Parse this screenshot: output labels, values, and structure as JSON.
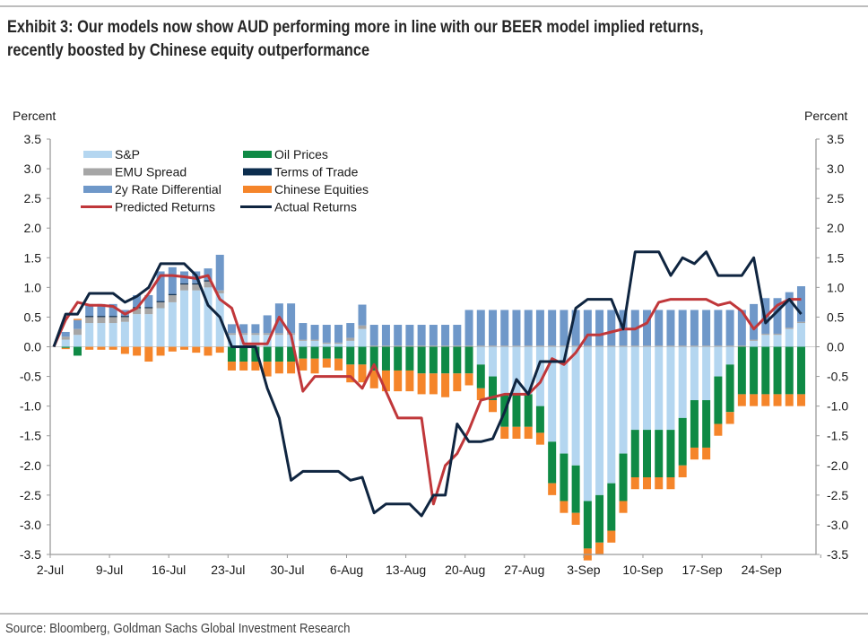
{
  "title": "Exhibit 3: Our models now show AUD performing more in line with our BEER model implied returns, recently boosted by Chinese equity outperformance",
  "title_line1": "Exhibit 3: Our models now show AUD performing more in line with our BEER model implied returns,",
  "title_line2": "recently boosted by Chinese equity outperformance",
  "source": "Source: Bloomberg, Goldman Sachs Global Investment Research",
  "chart_data": {
    "type": "bar",
    "stacked": true,
    "title": "",
    "ylabel_left": "Percent",
    "ylabel_right": "Percent",
    "xlabel": "",
    "ylim": [
      -3.5,
      3.5
    ],
    "yticks": [
      3.5,
      3.0,
      2.5,
      2.0,
      1.5,
      1.0,
      0.5,
      0.0,
      -0.5,
      -1.0,
      -1.5,
      -2.0,
      -2.5,
      -3.0,
      -3.5
    ],
    "ytick_labels": [
      "3.5",
      "3.0",
      "2.5",
      "2.0",
      "1.5",
      "1.0",
      "0.5",
      "0.0",
      "-0.5",
      "-1.0",
      "-1.5",
      "-2.0",
      "-2.5",
      "-3.0",
      "-3.5"
    ],
    "xtick_labels": [
      "2-Jul",
      "9-Jul",
      "16-Jul",
      "23-Jul",
      "30-Jul",
      "6-Aug",
      "13-Aug",
      "20-Aug",
      "27-Aug",
      "3-Sep",
      "10-Sep",
      "17-Sep",
      "24-Sep"
    ],
    "legend_position": "top-left",
    "legend": [
      {
        "name": "S&P",
        "kind": "bar",
        "color": "#b4d6f0"
      },
      {
        "name": "Oil Prices",
        "kind": "bar",
        "color": "#0f8a45"
      },
      {
        "name": "EMU Spread",
        "kind": "bar",
        "color": "#a6a6a6"
      },
      {
        "name": "Terms of Trade",
        "kind": "bar",
        "color": "#0c2d4e"
      },
      {
        "name": "2y Rate Differential",
        "kind": "bar",
        "color": "#6f98c9"
      },
      {
        "name": "Chinese Equities",
        "kind": "bar",
        "color": "#f5852a"
      },
      {
        "name": "Predicted Returns",
        "kind": "line",
        "color": "#c0373a"
      },
      {
        "name": "Actual Returns",
        "kind": "line",
        "color": "#0f2540"
      }
    ],
    "x": [
      "2-Jul",
      "3-Jul",
      "4-Jul",
      "5-Jul",
      "6-Jul",
      "9-Jul",
      "10-Jul",
      "11-Jul",
      "12-Jul",
      "13-Jul",
      "16-Jul",
      "17-Jul",
      "18-Jul",
      "19-Jul",
      "20-Jul",
      "23-Jul",
      "24-Jul",
      "25-Jul",
      "26-Jul",
      "27-Jul",
      "30-Jul",
      "31-Jul",
      "1-Aug",
      "2-Aug",
      "3-Aug",
      "6-Aug",
      "7-Aug",
      "8-Aug",
      "9-Aug",
      "10-Aug",
      "13-Aug",
      "14-Aug",
      "15-Aug",
      "16-Aug",
      "17-Aug",
      "20-Aug",
      "21-Aug",
      "22-Aug",
      "23-Aug",
      "24-Aug",
      "27-Aug",
      "28-Aug",
      "29-Aug",
      "30-Aug",
      "31-Aug",
      "3-Sep",
      "4-Sep",
      "5-Sep",
      "6-Sep",
      "7-Sep",
      "10-Sep",
      "11-Sep",
      "12-Sep",
      "13-Sep",
      "14-Sep",
      "17-Sep",
      "18-Sep",
      "19-Sep",
      "20-Sep",
      "21-Sep",
      "24-Sep",
      "25-Sep",
      "26-Sep",
      "27-Sep"
    ],
    "series": [
      {
        "name": "S&P",
        "values": [
          0.0,
          0.12,
          0.2,
          0.4,
          0.4,
          0.4,
          0.42,
          0.55,
          0.55,
          0.65,
          0.75,
          0.95,
          0.95,
          1.0,
          0.9,
          0.2,
          0.2,
          0.2,
          0.2,
          0.2,
          0.2,
          0.1,
          0.1,
          0.05,
          0.05,
          0.1,
          0.3,
          0.0,
          0.0,
          0.0,
          0.0,
          0.0,
          0.0,
          0.0,
          0.0,
          0.0,
          -0.3,
          -0.5,
          -0.8,
          -0.8,
          -0.8,
          -1.0,
          -1.6,
          -1.8,
          -2.0,
          -2.6,
          -2.5,
          -2.3,
          -1.8,
          -1.4,
          -1.4,
          -1.4,
          -1.4,
          -1.2,
          -0.9,
          -0.9,
          -0.5,
          -0.3,
          0.0,
          0.1,
          0.2,
          0.2,
          0.3,
          0.4
        ]
      },
      {
        "name": "Oil Prices",
        "values": [
          0.0,
          -0.02,
          -0.15,
          -0.0,
          -0.0,
          -0.0,
          -0.0,
          -0.0,
          -0.0,
          -0.0,
          -0.0,
          -0.0,
          -0.0,
          -0.0,
          -0.0,
          -0.25,
          -0.25,
          -0.25,
          -0.25,
          -0.25,
          -0.25,
          -0.2,
          -0.2,
          -0.2,
          -0.2,
          -0.3,
          -0.3,
          -0.4,
          -0.4,
          -0.4,
          -0.4,
          -0.45,
          -0.45,
          -0.45,
          -0.45,
          -0.45,
          -0.4,
          -0.4,
          -0.55,
          -0.55,
          -0.55,
          -0.45,
          -0.7,
          -0.8,
          -0.8,
          -0.8,
          -0.8,
          -0.8,
          -0.8,
          -0.8,
          -0.8,
          -0.8,
          -0.8,
          -0.8,
          -0.8,
          -0.8,
          -0.8,
          -0.8,
          -0.8,
          -0.8,
          -0.8,
          -0.8,
          -0.8,
          -0.8
        ]
      },
      {
        "name": "EMU Spread",
        "values": [
          0.0,
          0.05,
          0.1,
          0.1,
          0.1,
          0.1,
          0.08,
          0.1,
          0.1,
          0.1,
          0.12,
          0.1,
          0.1,
          0.1,
          0.05,
          0.03,
          0.03,
          0.03,
          0.03,
          0.03,
          0.03,
          0.02,
          0.02,
          0.02,
          0.02,
          0.05,
          0.06,
          0.02,
          0.02,
          0.02,
          0.02,
          0.02,
          0.02,
          0.02,
          0.02,
          0.02,
          0.02,
          0.02,
          0.02,
          0.02,
          0.02,
          0.02,
          0.02,
          0.02,
          0.02,
          0.02,
          0.02,
          0.02,
          0.02,
          0.02,
          0.02,
          0.02,
          0.02,
          0.02,
          0.02,
          0.02,
          0.02,
          0.02,
          0.02,
          0.02,
          0.02,
          0.02,
          0.02,
          0.02
        ]
      },
      {
        "name": "Terms of Trade",
        "values": [
          0.0,
          0.0,
          0.0,
          0.02,
          0.02,
          0.02,
          0.02,
          0.02,
          0.02,
          0.02,
          0.02,
          0.02,
          0.02,
          0.02,
          0.0,
          0.0,
          0.0,
          0.0,
          0.0,
          0.0,
          0.0,
          0.0,
          0.0,
          0.0,
          0.0,
          0.0,
          0.0,
          0.0,
          0.0,
          0.0,
          0.0,
          0.0,
          0.0,
          0.0,
          0.0,
          0.0,
          0.0,
          0.0,
          0.0,
          0.0,
          0.0,
          0.0,
          0.0,
          0.0,
          0.0,
          0.0,
          0.0,
          0.0,
          0.0,
          0.0,
          0.0,
          0.0,
          0.0,
          0.0,
          0.0,
          0.0,
          0.0,
          0.0,
          0.0,
          0.0,
          0.0,
          0.0,
          0.0,
          0.0
        ]
      },
      {
        "name": "2y Rate Differential",
        "values": [
          0.0,
          0.08,
          0.15,
          0.2,
          0.2,
          0.2,
          0.1,
          0.2,
          0.2,
          0.5,
          0.45,
          0.2,
          0.2,
          0.2,
          0.6,
          0.15,
          0.15,
          0.15,
          0.3,
          0.5,
          0.5,
          0.28,
          0.25,
          0.3,
          0.3,
          0.25,
          0.35,
          0.35,
          0.35,
          0.35,
          0.35,
          0.35,
          0.35,
          0.35,
          0.35,
          0.6,
          0.6,
          0.6,
          0.6,
          0.6,
          0.6,
          0.6,
          0.6,
          0.6,
          0.6,
          0.6,
          0.6,
          0.6,
          0.6,
          0.6,
          0.6,
          0.6,
          0.6,
          0.6,
          0.6,
          0.6,
          0.6,
          0.6,
          0.6,
          0.6,
          0.6,
          0.6,
          0.6,
          0.6
        ]
      },
      {
        "name": "Chinese Equities",
        "values": [
          0.0,
          -0.02,
          0.02,
          -0.05,
          -0.05,
          -0.05,
          -0.12,
          -0.15,
          -0.25,
          -0.15,
          -0.08,
          -0.05,
          -0.1,
          -0.15,
          -0.1,
          -0.15,
          -0.15,
          -0.15,
          -0.25,
          -0.2,
          -0.2,
          -0.2,
          -0.25,
          -0.15,
          -0.2,
          -0.3,
          -0.3,
          -0.3,
          -0.35,
          -0.35,
          -0.35,
          -0.35,
          -0.35,
          -0.4,
          -0.3,
          -0.2,
          -0.2,
          -0.2,
          -0.2,
          -0.2,
          -0.2,
          -0.2,
          -0.2,
          -0.2,
          -0.2,
          -0.2,
          -0.2,
          -0.2,
          -0.2,
          -0.2,
          -0.2,
          -0.2,
          -0.2,
          -0.2,
          -0.2,
          -0.2,
          -0.2,
          -0.2,
          -0.2,
          -0.2,
          -0.2,
          -0.2,
          -0.2,
          -0.2
        ]
      },
      {
        "name": "Predicted Returns",
        "values": [
          0.0,
          0.45,
          0.75,
          0.7,
          0.7,
          0.68,
          0.55,
          0.65,
          0.9,
          1.2,
          1.2,
          1.18,
          1.15,
          1.2,
          0.8,
          0.65,
          0.05,
          0.05,
          0.05,
          0.5,
          0.2,
          -0.75,
          -0.5,
          -0.5,
          -0.5,
          -0.5,
          -0.7,
          -0.3,
          -0.75,
          -1.2,
          -1.2,
          -1.2,
          -2.65,
          -2.0,
          -1.8,
          -1.4,
          -0.9,
          -0.85,
          -0.8,
          -0.8,
          -0.8,
          -0.6,
          -0.2,
          -0.3,
          -0.1,
          0.2,
          0.2,
          0.25,
          0.3,
          0.3,
          0.4,
          0.75,
          0.8,
          0.8,
          0.8,
          0.8,
          0.7,
          0.75,
          0.6,
          0.3,
          0.5,
          0.7,
          0.8,
          0.8
        ]
      },
      {
        "name": "Actual Returns",
        "values": [
          0.0,
          0.55,
          0.55,
          0.9,
          0.9,
          0.9,
          0.75,
          0.85,
          1.0,
          1.4,
          1.4,
          1.4,
          1.2,
          0.7,
          0.5,
          0.0,
          0.0,
          0.0,
          -0.7,
          -1.2,
          -2.25,
          -2.1,
          -2.1,
          -2.1,
          -2.1,
          -2.25,
          -2.2,
          -2.8,
          -2.65,
          -2.65,
          -2.65,
          -2.85,
          -2.5,
          -2.5,
          -1.3,
          -1.6,
          -1.6,
          -1.55,
          -1.1,
          -0.55,
          -0.8,
          -0.25,
          -0.25,
          -0.25,
          0.65,
          0.8,
          0.8,
          0.8,
          0.3,
          1.6,
          1.6,
          1.6,
          1.2,
          1.5,
          1.4,
          1.6,
          1.2,
          1.2,
          1.2,
          1.5,
          0.4,
          0.6,
          0.8,
          0.55
        ]
      }
    ]
  }
}
